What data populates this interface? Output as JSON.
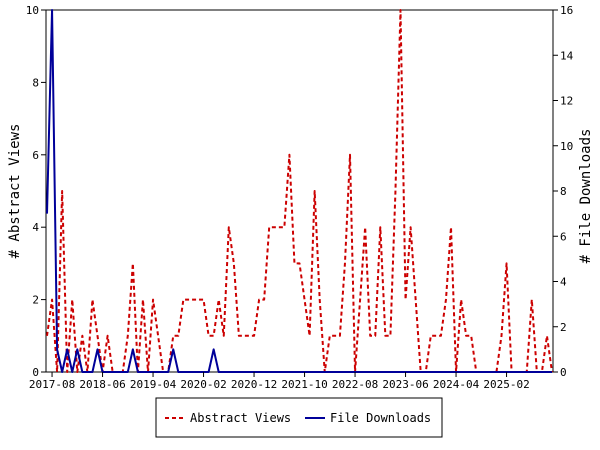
{
  "chart_data": {
    "type": "line",
    "xlabel": "",
    "ylabel": "# Abstract Views",
    "y2label": "# File Downloads",
    "ylim": [
      0,
      10
    ],
    "y2lim": [
      0,
      16
    ],
    "yticks": [
      "0",
      "2",
      "4",
      "6",
      "8",
      "10"
    ],
    "y2ticks": [
      "0",
      "2",
      "4",
      "6",
      "8",
      "10",
      "12",
      "14",
      "16"
    ],
    "xticks": [
      "2017-08",
      "2018-06",
      "2019-04",
      "2020-02",
      "2020-12",
      "2021-10",
      "2022-08",
      "2023-06",
      "2024-04",
      "2025-02"
    ],
    "start_month": "2017-07",
    "grid": false,
    "legend_position": "bottom",
    "series": [
      {
        "name": "Abstract Views",
        "axis": "left",
        "color": "#cc0000",
        "style": "dashed",
        "values": [
          1,
          2,
          0,
          5,
          0,
          2,
          0,
          1,
          0,
          2,
          1,
          0,
          1,
          0,
          0,
          0,
          1,
          3,
          0,
          2,
          0,
          2,
          1,
          0,
          0,
          1,
          1,
          2,
          2,
          2,
          2,
          2,
          1,
          1,
          2,
          1,
          4,
          3,
          1,
          1,
          1,
          1,
          2,
          2,
          4,
          4,
          4,
          4,
          6,
          3,
          3,
          2,
          1,
          5,
          2,
          0,
          1,
          1,
          1,
          3,
          6,
          0,
          2,
          4,
          1,
          1,
          4,
          1,
          1,
          5,
          10,
          2,
          4,
          2,
          0,
          0,
          1,
          1,
          1,
          2,
          4,
          0,
          2,
          1,
          1,
          0,
          0,
          0,
          0,
          0,
          1,
          3,
          0,
          0,
          0,
          0,
          2,
          0,
          0,
          1,
          0
        ]
      },
      {
        "name": "File Downloads",
        "axis": "right",
        "color": "#000099",
        "style": "solid",
        "values": [
          7,
          16,
          1,
          0,
          1,
          0,
          1,
          0,
          0,
          0,
          1,
          0,
          0,
          0,
          0,
          0,
          0,
          1,
          0,
          0,
          0,
          0,
          0,
          0,
          0,
          1,
          0,
          0,
          0,
          0,
          0,
          0,
          0,
          1,
          0,
          0,
          0,
          0,
          0,
          0,
          0,
          0,
          0,
          0,
          0,
          0,
          0,
          0,
          0,
          0,
          0,
          0,
          0,
          0,
          0,
          0,
          0,
          0,
          0,
          0,
          0,
          0,
          0,
          0,
          0,
          0,
          0,
          0,
          0,
          0,
          0,
          0,
          0,
          0,
          0,
          0,
          0,
          0,
          0,
          0,
          0,
          0,
          0,
          0,
          0,
          0,
          0,
          0,
          0,
          0,
          0,
          0,
          0,
          0,
          0,
          0,
          0,
          0,
          0,
          0,
          0
        ]
      }
    ]
  }
}
